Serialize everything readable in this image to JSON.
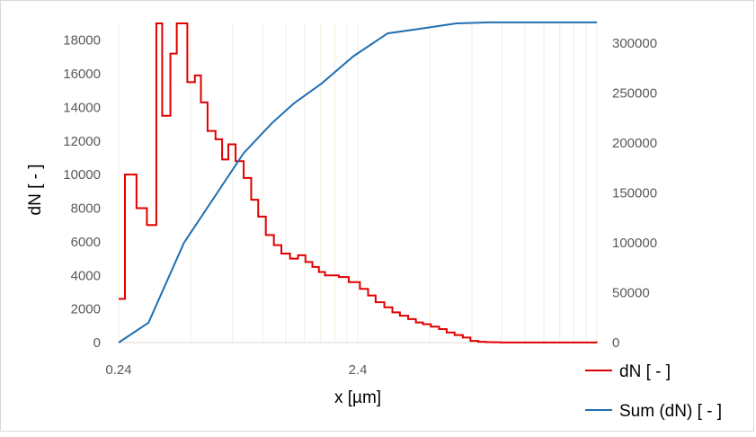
{
  "chart_data": {
    "type": "line",
    "xlabel": "x [µm]",
    "ylabel": "dN [ - ]",
    "x_scale": "log",
    "xlim": [
      0.24,
      24
    ],
    "x_ticks": [
      "0.24",
      "2.4"
    ],
    "ylim_left": [
      0,
      19000
    ],
    "yticks_left": [
      0,
      2000,
      4000,
      6000,
      8000,
      10000,
      12000,
      14000,
      16000,
      18000
    ],
    "ylim_right": [
      0,
      320000
    ],
    "yticks_right": [
      0,
      50000,
      100000,
      150000,
      200000,
      250000,
      300000
    ],
    "grid": "vertical log gridlines",
    "legend_position": "bottom-right",
    "series": [
      {
        "name": "dN [ - ]",
        "axis": "left",
        "step": true,
        "color": "#e00000",
        "x": [
          0.24,
          0.255,
          0.285,
          0.315,
          0.345,
          0.365,
          0.395,
          0.42,
          0.465,
          0.5,
          0.53,
          0.565,
          0.61,
          0.65,
          0.69,
          0.74,
          0.8,
          0.86,
          0.92,
          0.99,
          1.07,
          1.15,
          1.25,
          1.35,
          1.45,
          1.55,
          1.65,
          1.75,
          1.85,
          2.0,
          2.2,
          2.45,
          2.65,
          2.85,
          3.1,
          3.35,
          3.6,
          3.9,
          4.2,
          4.5,
          4.85,
          5.25,
          5.65,
          6.1,
          6.6,
          7.1,
          7.65,
          8.25,
          8.85,
          9.5,
          24
        ],
        "values": [
          2600,
          10000,
          8000,
          7000,
          19000,
          13500,
          17200,
          19000,
          15500,
          15900,
          14300,
          12600,
          12100,
          10900,
          11800,
          10800,
          9800,
          8500,
          7500,
          6400,
          5800,
          5300,
          5000,
          5200,
          4800,
          4500,
          4200,
          4000,
          4000,
          3900,
          3600,
          3200,
          2800,
          2400,
          2100,
          1800,
          1600,
          1400,
          1200,
          1100,
          950,
          800,
          600,
          450,
          300,
          100,
          50,
          30,
          20,
          10,
          0
        ]
      },
      {
        "name": "Sum (dN) [ - ]",
        "axis": "right",
        "step": false,
        "color": "#1f6fb2",
        "x": [
          0.24,
          0.32,
          0.45,
          0.6,
          0.8,
          1.05,
          1.3,
          1.7,
          2.3,
          3.2,
          4.5,
          6.2,
          8.5,
          12,
          24
        ],
        "values": [
          0,
          20000,
          100000,
          145000,
          190000,
          220000,
          240000,
          260000,
          287000,
          310000,
          315000,
          320000,
          321000,
          321000,
          321000
        ]
      }
    ]
  }
}
